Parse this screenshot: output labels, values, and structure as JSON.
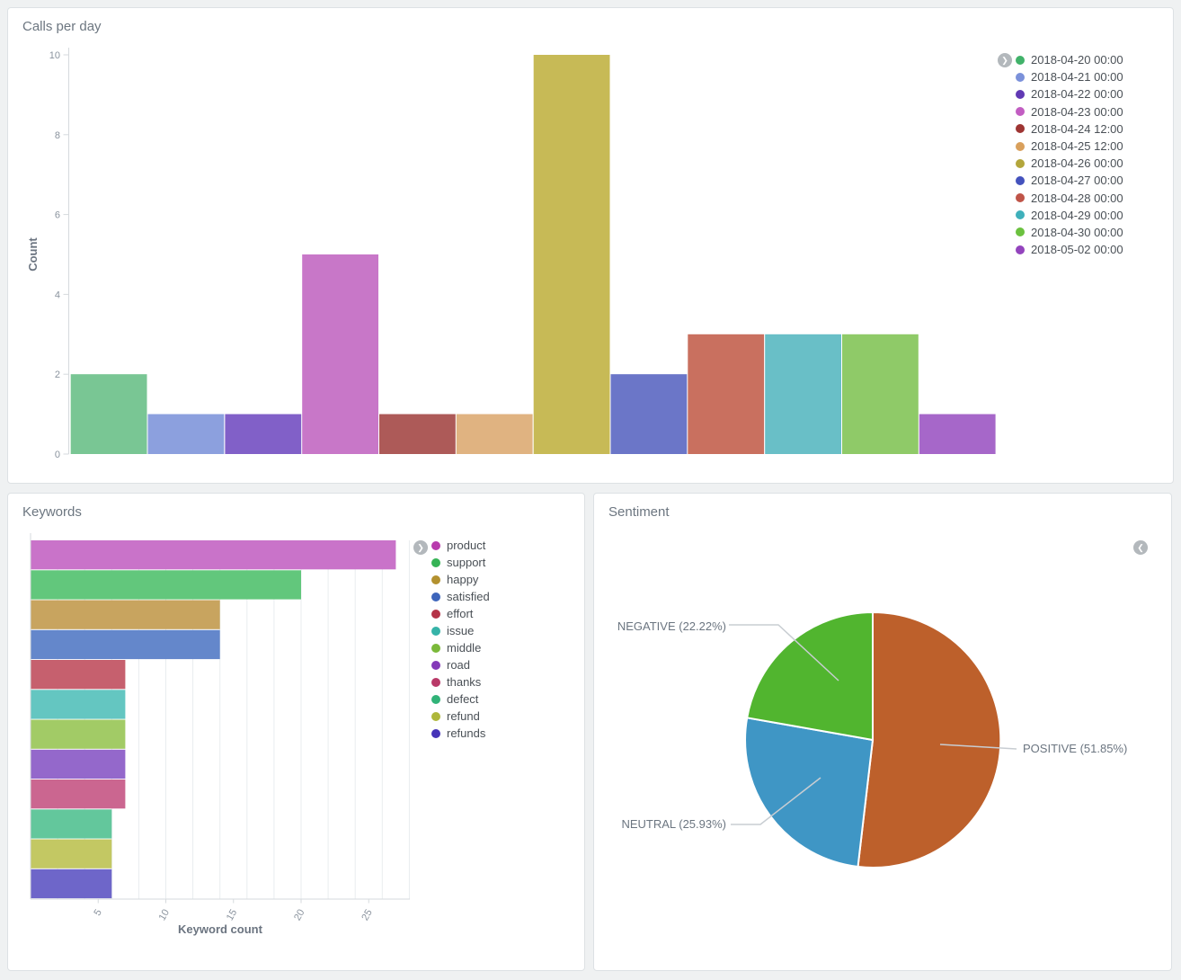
{
  "panels": {
    "calls": {
      "title": "Calls per day"
    },
    "keywords": {
      "title": "Keywords"
    },
    "sentiment": {
      "title": "Sentiment"
    }
  },
  "icons": {
    "legend_expand_right": "❯",
    "legend_collapse_left": "❮"
  },
  "chart_data": [
    {
      "id": "calls_per_day",
      "type": "bar",
      "title": "Calls per day",
      "xlabel": "",
      "ylabel": "Count",
      "ylim": [
        0,
        10
      ],
      "yticks": [
        0,
        2,
        4,
        6,
        8,
        10
      ],
      "grid": false,
      "legend_position": "right",
      "categories": [
        "2018-04-20 00:00",
        "2018-04-21 00:00",
        "2018-04-22 00:00",
        "2018-04-23 00:00",
        "2018-04-24 12:00",
        "2018-04-25 12:00",
        "2018-04-26 00:00",
        "2018-04-27 00:00",
        "2018-04-28 00:00",
        "2018-04-29 00:00",
        "2018-04-30 00:00",
        "2018-05-02 00:00"
      ],
      "values": [
        2,
        1,
        1,
        5,
        1,
        1,
        10,
        2,
        3,
        3,
        3,
        1
      ],
      "bar_colors": [
        "#79c694",
        "#8ca0de",
        "#8160c8",
        "#c877c8",
        "#ad5a58",
        "#e0b381",
        "#c7ba56",
        "#6b76c8",
        "#c9705f",
        "#69bfc7",
        "#8fca68",
        "#a667c9"
      ],
      "legend_colors": [
        "#41b26a",
        "#7b91da",
        "#6139b4",
        "#c25dc2",
        "#9e3533",
        "#d9a05c",
        "#b3a63c",
        "#4452bd",
        "#bf5448",
        "#3fb0bb",
        "#6bc13f",
        "#9344bd"
      ]
    },
    {
      "id": "keywords",
      "type": "bar",
      "orientation": "horizontal",
      "title": "Keywords",
      "xlabel": "Keyword count",
      "ylabel": "",
      "xlim": [
        0,
        28
      ],
      "xticks": [
        5,
        10,
        15,
        20,
        25
      ],
      "grid": true,
      "grid_interval": 2,
      "legend_position": "right",
      "categories": [
        "product",
        "support",
        "happy",
        "satisfied",
        "effort",
        "issue",
        "middle",
        "road",
        "thanks",
        "defect",
        "refund",
        "refunds"
      ],
      "values": [
        27,
        20,
        14,
        14,
        7,
        7,
        7,
        7,
        7,
        6,
        6,
        6
      ],
      "bar_colors": [
        "#c973c9",
        "#62c77c",
        "#c8a45f",
        "#6487cb",
        "#c6606e",
        "#64c6c1",
        "#a2cb66",
        "#9468cb",
        "#cb6690",
        "#63c79c",
        "#c3c863",
        "#6e66c9"
      ],
      "legend_colors": [
        "#b83bad",
        "#36b356",
        "#b3912f",
        "#3d65bb",
        "#b43347",
        "#36b3a8",
        "#7bb93a",
        "#8439b8",
        "#b93968",
        "#31b378",
        "#aeb73a",
        "#4634b8"
      ]
    },
    {
      "id": "sentiment",
      "type": "pie",
      "title": "Sentiment",
      "slices": [
        {
          "label": "POSITIVE",
          "pct": 51.85,
          "display": "POSITIVE (51.85%)",
          "color": "#bd602b"
        },
        {
          "label": "NEUTRAL",
          "pct": 25.93,
          "display": "NEUTRAL (25.93%)",
          "color": "#3f96c5"
        },
        {
          "label": "NEGATIVE",
          "pct": 22.22,
          "display": "NEGATIVE (22.22%)",
          "color": "#51b52f"
        }
      ]
    }
  ]
}
